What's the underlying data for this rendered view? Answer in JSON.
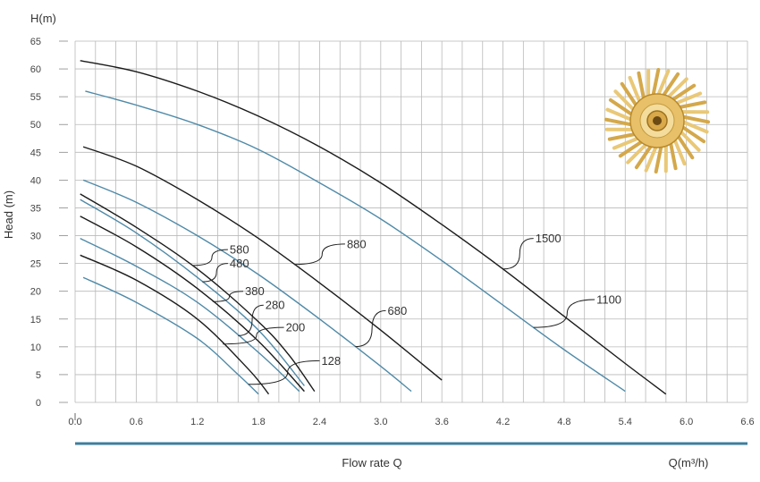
{
  "chart_data": {
    "type": "line",
    "title": "",
    "ylabel": "Head (m)",
    "y_unit_label": "H(m)",
    "xlabel": "Flow rate Q",
    "x_unit_label": "Q(m³/h)",
    "xlim": [
      0,
      6.6
    ],
    "ylim": [
      0,
      65
    ],
    "x_ticks": [
      "0.0",
      "0.6",
      "1.2",
      "1.8",
      "2.4",
      "3.0",
      "3.6",
      "4.2",
      "4.8",
      "5.4",
      "6.0",
      "6.6"
    ],
    "y_ticks": [
      "0",
      "5",
      "10",
      "15",
      "20",
      "25",
      "30",
      "35",
      "40",
      "45",
      "50",
      "55",
      "60",
      "65"
    ],
    "grid": true,
    "colors": {
      "black": "#1a1a1a",
      "blue": "#4f8aa8",
      "rule": "#3e7e9c"
    },
    "series": [
      {
        "name": "1500",
        "color": "black",
        "x": [
          0.05,
          0.6,
          1.2,
          1.8,
          2.4,
          3.0,
          3.6,
          4.2,
          4.8,
          5.4,
          5.8
        ],
        "y": [
          61.5,
          59.5,
          56,
          51.5,
          46,
          39.5,
          32,
          24,
          15.5,
          7,
          1.5
        ]
      },
      {
        "name": "1100",
        "color": "blue",
        "x": [
          0.1,
          0.6,
          1.2,
          1.8,
          2.4,
          3.0,
          3.6,
          4.2,
          4.8,
          5.4
        ],
        "y": [
          56,
          53.5,
          50,
          45.5,
          39.5,
          33,
          25.5,
          17.5,
          9.5,
          2
        ]
      },
      {
        "name": "880",
        "color": "black",
        "x": [
          0.08,
          0.6,
          1.2,
          1.8,
          2.4,
          3.0,
          3.6
        ],
        "y": [
          46,
          42.5,
          36.5,
          29.5,
          21.5,
          13,
          4
        ]
      },
      {
        "name": "680",
        "color": "blue",
        "x": [
          0.08,
          0.6,
          1.2,
          1.8,
          2.4,
          3.0,
          3.3
        ],
        "y": [
          40,
          36,
          30,
          23,
          15,
          6.5,
          2
        ]
      },
      {
        "name": "580",
        "color": "black",
        "x": [
          0.05,
          0.6,
          1.2,
          1.8,
          2.1,
          2.35
        ],
        "y": [
          37.5,
          31.5,
          24,
          14.5,
          8.5,
          2
        ]
      },
      {
        "name": "480",
        "color": "blue",
        "x": [
          0.05,
          0.6,
          1.2,
          1.8,
          2.25
        ],
        "y": [
          36.5,
          30.5,
          22.5,
          13,
          3
        ]
      },
      {
        "name": "380",
        "color": "black",
        "x": [
          0.05,
          0.6,
          1.2,
          1.8,
          2.25
        ],
        "y": [
          33.5,
          28,
          20.5,
          11,
          2
        ]
      },
      {
        "name": "280",
        "color": "blue",
        "x": [
          0.05,
          0.6,
          1.2,
          1.8,
          2.2
        ],
        "y": [
          29.5,
          24.5,
          18,
          9,
          2
        ]
      },
      {
        "name": "200",
        "color": "black",
        "x": [
          0.05,
          0.6,
          1.2,
          1.7,
          1.9
        ],
        "y": [
          26.5,
          22,
          15,
          6,
          1.5
        ]
      },
      {
        "name": "128",
        "color": "blue",
        "x": [
          0.08,
          0.6,
          1.2,
          1.6,
          1.8
        ],
        "y": [
          22.5,
          18,
          11.5,
          5,
          1.5
        ]
      }
    ],
    "annotations": [
      {
        "text": "1500",
        "series": "1500",
        "at_x": 4.2,
        "label_x": 4.5,
        "label_y": 29.5
      },
      {
        "text": "1100",
        "series": "1100",
        "at_x": 4.5,
        "label_x": 5.1,
        "label_y": 18.5
      },
      {
        "text": "880",
        "series": "880",
        "at_x": 2.15,
        "label_x": 2.65,
        "label_y": 28.5
      },
      {
        "text": "680",
        "series": "680",
        "at_x": 2.75,
        "label_x": 3.05,
        "label_y": 16.5
      },
      {
        "text": "580",
        "series": "580",
        "at_x": 1.15,
        "label_x": 1.5,
        "label_y": 27.5
      },
      {
        "text": "480",
        "series": "480",
        "at_x": 1.25,
        "label_x": 1.5,
        "label_y": 25.0
      },
      {
        "text": "380",
        "series": "380",
        "at_x": 1.35,
        "label_x": 1.65,
        "label_y": 20.0
      },
      {
        "text": "280",
        "series": "280",
        "at_x": 1.6,
        "label_x": 1.85,
        "label_y": 17.5
      },
      {
        "text": "200",
        "series": "200",
        "at_x": 1.45,
        "label_x": 2.05,
        "label_y": 13.5
      },
      {
        "text": "128",
        "series": "128",
        "at_x": 1.7,
        "label_x": 2.4,
        "label_y": 7.5
      }
    ]
  }
}
